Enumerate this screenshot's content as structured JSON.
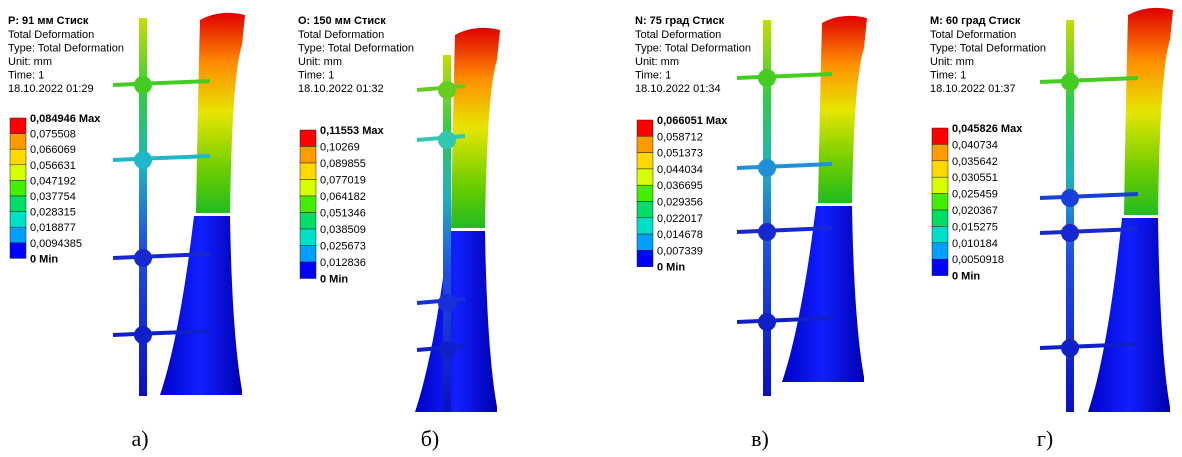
{
  "panels": [
    {
      "title": "P: 91 мм Стиск",
      "lines": [
        "Total Deformation",
        "Type: Total Deformation",
        "Unit: mm",
        "Time: 1",
        "18.10.2022 01:29"
      ],
      "legend": [
        "0,084946 Max",
        "0,075508",
        "0,066069",
        "0,056631",
        "0,047192",
        "0,037754",
        "0,028315",
        "0,018877",
        "0,0094385",
        "0 Min"
      ],
      "caption": "а)"
    },
    {
      "title": "O: 150 мм Стиск",
      "lines": [
        "Total Deformation",
        "Type: Total Deformation",
        "Unit: mm",
        "Time: 1",
        "18.10.2022 01:32"
      ],
      "legend": [
        "0,11553 Max",
        "0,10269",
        "0,089855",
        "0,077019",
        "0,064182",
        "0,051346",
        "0,038509",
        "0,025673",
        "0,012836",
        "0 Min"
      ],
      "caption": "б)"
    },
    {
      "title": "N: 75 град Стиск",
      "lines": [
        "Total Deformation",
        "Type: Total Deformation",
        "Unit: mm",
        "Time: 1",
        "18.10.2022 01:34"
      ],
      "legend": [
        "0,066051 Max",
        "0,058712",
        "0,051373",
        "0,044034",
        "0,036695",
        "0,029356",
        "0,022017",
        "0,014678",
        "0,007339",
        "0 Min"
      ],
      "caption": "в)"
    },
    {
      "title": "M: 60 град Стиск",
      "lines": [
        "Total Deformation",
        "Type: Total Deformation",
        "Unit: mm",
        "Time: 1",
        "18.10.2022 01:37"
      ],
      "legend": [
        "0,045826 Max",
        "0,040734",
        "0,035642",
        "0,030551",
        "0,025459",
        "0,020367",
        "0,015275",
        "0,010184",
        "0,0050918",
        "0 Min"
      ],
      "caption": "г)"
    }
  ]
}
